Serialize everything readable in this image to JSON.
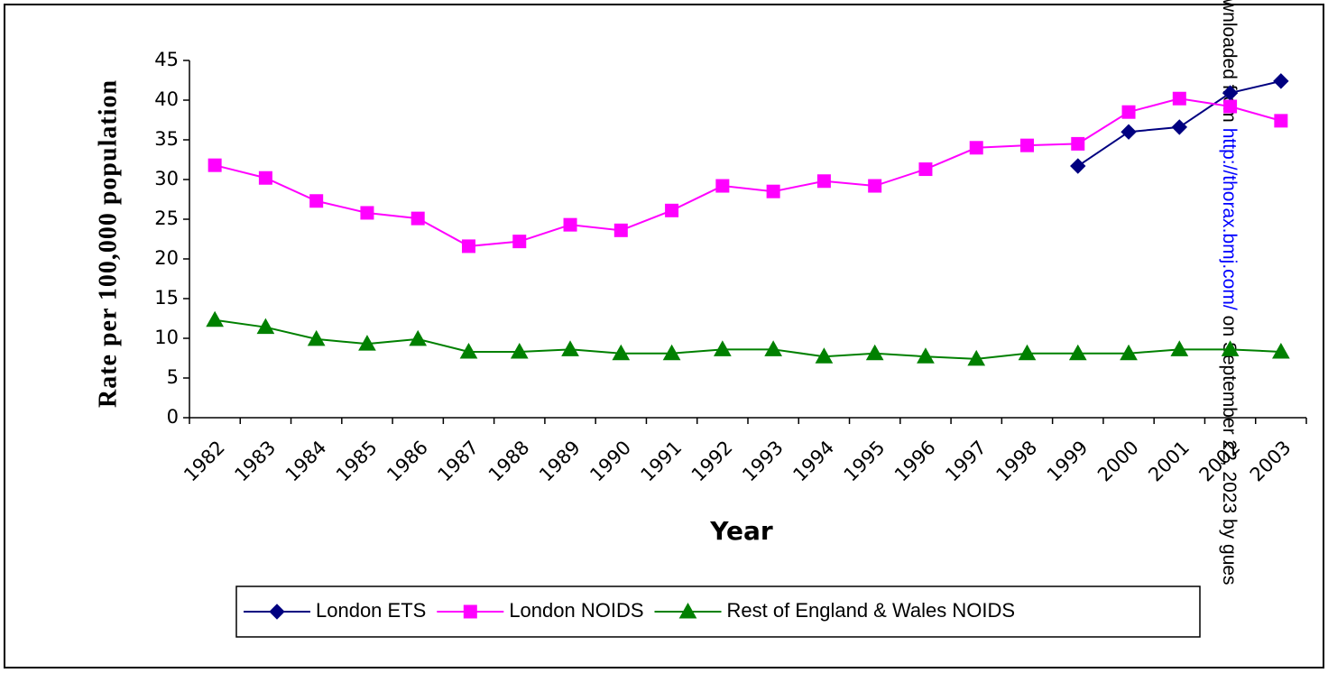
{
  "chart_data": {
    "type": "line",
    "x_label": "Year",
    "y_label": "Rate per 100,000 population",
    "categories": [
      "1982",
      "1983",
      "1984",
      "1985",
      "1986",
      "1987",
      "1988",
      "1989",
      "1990",
      "1991",
      "1992",
      "1993",
      "1994",
      "1995",
      "1996",
      "1997",
      "1998",
      "1999",
      "2000",
      "2001",
      "2002",
      "2003"
    ],
    "series": [
      {
        "name": "London ETS",
        "color": "#000080",
        "marker": "diamond",
        "values": [
          null,
          null,
          null,
          null,
          null,
          null,
          null,
          null,
          null,
          null,
          null,
          null,
          null,
          null,
          null,
          null,
          null,
          31.7,
          36.0,
          36.6,
          40.9,
          42.4
        ]
      },
      {
        "name": "London NOIDS",
        "color": "#ff00ff",
        "marker": "square",
        "values": [
          31.8,
          30.2,
          27.3,
          25.8,
          25.1,
          21.6,
          22.2,
          24.3,
          23.6,
          26.1,
          29.2,
          28.5,
          29.8,
          29.2,
          31.3,
          34.0,
          34.3,
          34.5,
          38.5,
          40.2,
          39.2,
          37.4
        ]
      },
      {
        "name": "Rest of England & Wales NOIDS",
        "color": "#008000",
        "marker": "triangle",
        "values": [
          12.3,
          11.4,
          9.9,
          9.3,
          9.9,
          8.3,
          8.3,
          8.6,
          8.1,
          8.1,
          8.6,
          8.6,
          7.7,
          8.1,
          7.7,
          7.4,
          8.1,
          8.1,
          8.1,
          8.6,
          8.6,
          8.3
        ]
      }
    ],
    "ylim": [
      0,
      45
    ],
    "yticks": [
      0,
      5,
      10,
      15,
      20,
      25,
      30,
      35,
      40,
      45
    ],
    "grid": false,
    "legend": "bottom"
  },
  "watermark": {
    "prefix": "wnloaded from",
    "link": "http://thorax.bmj.com/",
    "suffix": "on September 22, 2023 by gues"
  }
}
